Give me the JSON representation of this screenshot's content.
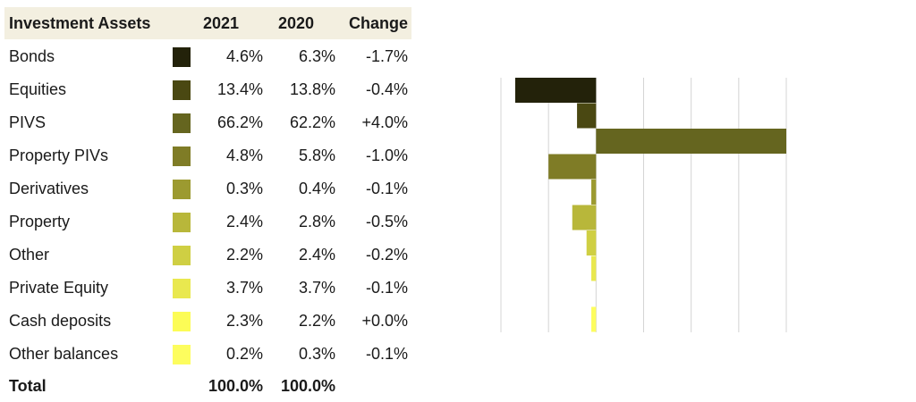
{
  "table": {
    "header": [
      "Investment Assets",
      "2021",
      "2020",
      "Change"
    ],
    "rows": [
      [
        "Bonds",
        "4.6%",
        "6.3%",
        "-1.7%"
      ],
      [
        "Equities",
        "13.4%",
        "13.8%",
        "-0.4%"
      ],
      [
        "PIVS",
        "66.2%",
        "62.2%",
        "+4.0%"
      ],
      [
        "Property PIVs",
        "4.8%",
        "5.8%",
        "-1.0%"
      ],
      [
        "Derivatives",
        "0.3%",
        "0.4%",
        "-0.1%"
      ],
      [
        "Property",
        "2.4%",
        "2.8%",
        "-0.5%"
      ],
      [
        "Other",
        "2.2%",
        "2.4%",
        "-0.2%"
      ],
      [
        "Private Equity",
        "3.7%",
        "3.7%",
        "-0.1%"
      ],
      [
        "Cash deposits",
        "2.3%",
        "2.2%",
        "+0.0%"
      ],
      [
        "Other balances",
        "0.2%",
        "0.3%",
        "-0.1%"
      ]
    ],
    "total": [
      "Total",
      "100.0%",
      "100.0%"
    ]
  },
  "chart_data": {
    "type": "bar",
    "orientation": "horizontal",
    "values": [
      -1.7,
      -0.4,
      4.0,
      -1.0,
      -0.1,
      -0.5,
      -0.2,
      -0.1,
      0.0,
      -0.1
    ],
    "colors": [
      "#23220a",
      "#4a4812",
      "#65651f",
      "#7f7c26",
      "#9c9a30",
      "#b8b73a",
      "#cfcf43",
      "#e9e84f",
      "#fcfc56",
      "#fdfd5e"
    ],
    "xlim": [
      -2,
      4
    ],
    "xticks": [
      -2,
      -1,
      0,
      1,
      2,
      3,
      4
    ],
    "grid": true
  }
}
